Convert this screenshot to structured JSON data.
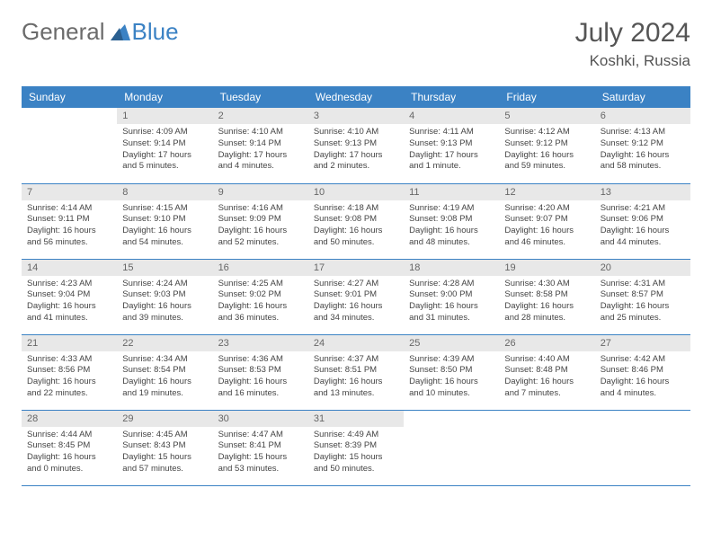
{
  "logo": {
    "general": "General",
    "blue": "Blue"
  },
  "title": "July 2024",
  "location": "Koshki, Russia",
  "colors": {
    "header_bg": "#3b82c4",
    "header_text": "#ffffff",
    "daynum_bg": "#e8e8e8",
    "daynum_text": "#666666",
    "body_text": "#444444",
    "border": "#3b82c4",
    "logo_general": "#6b6b6b",
    "logo_blue": "#3b82c4"
  },
  "weekdays": [
    "Sunday",
    "Monday",
    "Tuesday",
    "Wednesday",
    "Thursday",
    "Friday",
    "Saturday"
  ],
  "first_weekday_index": 1,
  "days": [
    {
      "n": 1,
      "sunrise": "4:09 AM",
      "sunset": "9:14 PM",
      "daylight": "17 hours and 5 minutes."
    },
    {
      "n": 2,
      "sunrise": "4:10 AM",
      "sunset": "9:14 PM",
      "daylight": "17 hours and 4 minutes."
    },
    {
      "n": 3,
      "sunrise": "4:10 AM",
      "sunset": "9:13 PM",
      "daylight": "17 hours and 2 minutes."
    },
    {
      "n": 4,
      "sunrise": "4:11 AM",
      "sunset": "9:13 PM",
      "daylight": "17 hours and 1 minute."
    },
    {
      "n": 5,
      "sunrise": "4:12 AM",
      "sunset": "9:12 PM",
      "daylight": "16 hours and 59 minutes."
    },
    {
      "n": 6,
      "sunrise": "4:13 AM",
      "sunset": "9:12 PM",
      "daylight": "16 hours and 58 minutes."
    },
    {
      "n": 7,
      "sunrise": "4:14 AM",
      "sunset": "9:11 PM",
      "daylight": "16 hours and 56 minutes."
    },
    {
      "n": 8,
      "sunrise": "4:15 AM",
      "sunset": "9:10 PM",
      "daylight": "16 hours and 54 minutes."
    },
    {
      "n": 9,
      "sunrise": "4:16 AM",
      "sunset": "9:09 PM",
      "daylight": "16 hours and 52 minutes."
    },
    {
      "n": 10,
      "sunrise": "4:18 AM",
      "sunset": "9:08 PM",
      "daylight": "16 hours and 50 minutes."
    },
    {
      "n": 11,
      "sunrise": "4:19 AM",
      "sunset": "9:08 PM",
      "daylight": "16 hours and 48 minutes."
    },
    {
      "n": 12,
      "sunrise": "4:20 AM",
      "sunset": "9:07 PM",
      "daylight": "16 hours and 46 minutes."
    },
    {
      "n": 13,
      "sunrise": "4:21 AM",
      "sunset": "9:06 PM",
      "daylight": "16 hours and 44 minutes."
    },
    {
      "n": 14,
      "sunrise": "4:23 AM",
      "sunset": "9:04 PM",
      "daylight": "16 hours and 41 minutes."
    },
    {
      "n": 15,
      "sunrise": "4:24 AM",
      "sunset": "9:03 PM",
      "daylight": "16 hours and 39 minutes."
    },
    {
      "n": 16,
      "sunrise": "4:25 AM",
      "sunset": "9:02 PM",
      "daylight": "16 hours and 36 minutes."
    },
    {
      "n": 17,
      "sunrise": "4:27 AM",
      "sunset": "9:01 PM",
      "daylight": "16 hours and 34 minutes."
    },
    {
      "n": 18,
      "sunrise": "4:28 AM",
      "sunset": "9:00 PM",
      "daylight": "16 hours and 31 minutes."
    },
    {
      "n": 19,
      "sunrise": "4:30 AM",
      "sunset": "8:58 PM",
      "daylight": "16 hours and 28 minutes."
    },
    {
      "n": 20,
      "sunrise": "4:31 AM",
      "sunset": "8:57 PM",
      "daylight": "16 hours and 25 minutes."
    },
    {
      "n": 21,
      "sunrise": "4:33 AM",
      "sunset": "8:56 PM",
      "daylight": "16 hours and 22 minutes."
    },
    {
      "n": 22,
      "sunrise": "4:34 AM",
      "sunset": "8:54 PM",
      "daylight": "16 hours and 19 minutes."
    },
    {
      "n": 23,
      "sunrise": "4:36 AM",
      "sunset": "8:53 PM",
      "daylight": "16 hours and 16 minutes."
    },
    {
      "n": 24,
      "sunrise": "4:37 AM",
      "sunset": "8:51 PM",
      "daylight": "16 hours and 13 minutes."
    },
    {
      "n": 25,
      "sunrise": "4:39 AM",
      "sunset": "8:50 PM",
      "daylight": "16 hours and 10 minutes."
    },
    {
      "n": 26,
      "sunrise": "4:40 AM",
      "sunset": "8:48 PM",
      "daylight": "16 hours and 7 minutes."
    },
    {
      "n": 27,
      "sunrise": "4:42 AM",
      "sunset": "8:46 PM",
      "daylight": "16 hours and 4 minutes."
    },
    {
      "n": 28,
      "sunrise": "4:44 AM",
      "sunset": "8:45 PM",
      "daylight": "16 hours and 0 minutes."
    },
    {
      "n": 29,
      "sunrise": "4:45 AM",
      "sunset": "8:43 PM",
      "daylight": "15 hours and 57 minutes."
    },
    {
      "n": 30,
      "sunrise": "4:47 AM",
      "sunset": "8:41 PM",
      "daylight": "15 hours and 53 minutes."
    },
    {
      "n": 31,
      "sunrise": "4:49 AM",
      "sunset": "8:39 PM",
      "daylight": "15 hours and 50 minutes."
    }
  ]
}
